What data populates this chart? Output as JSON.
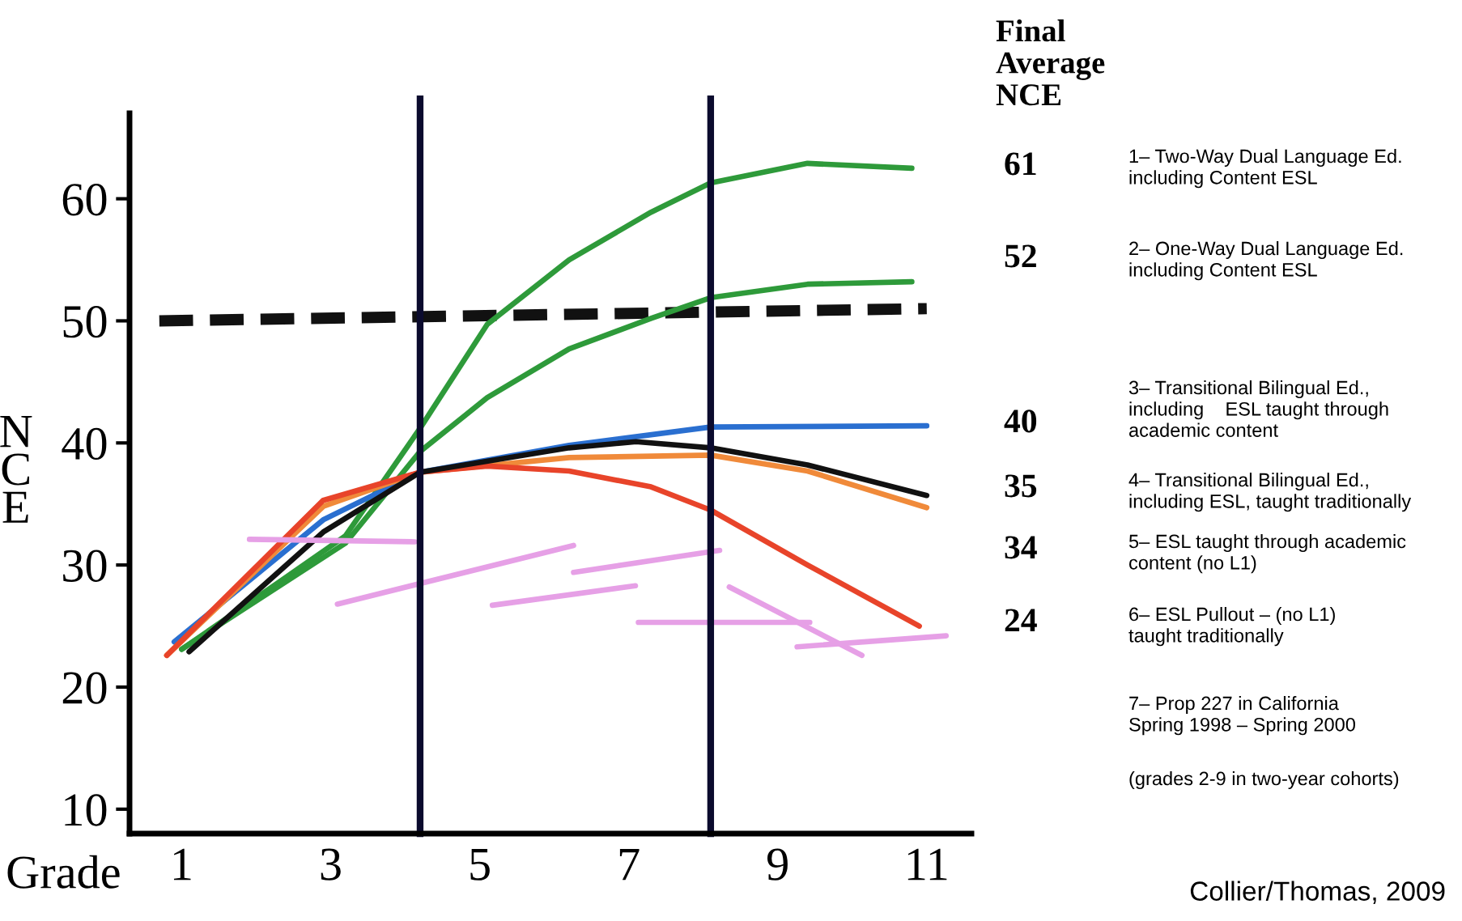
{
  "chart_data": {
    "type": "line",
    "xlabel": "Grade",
    "ylabel": "NCE",
    "xlim": [
      0.3,
      11.6
    ],
    "ylim": [
      8,
      67
    ],
    "xticks": [
      1,
      3,
      5,
      7,
      9,
      11
    ],
    "yticks": [
      10,
      20,
      30,
      40,
      50,
      60
    ],
    "grid": false,
    "legend": false,
    "marker": "none",
    "series": [
      {
        "color": "#111111",
        "line_style": "dashed",
        "x": [
          0.7,
          11
        ],
        "values": [
          50,
          51
        ]
      },
      {
        "color": "#2e9a3a",
        "x": [
          1.0,
          2.26,
          3.2,
          4.2,
          5.1,
          6.2,
          7.3,
          8.1,
          9.4,
          10.8
        ],
        "values": [
          23.1,
          28.4,
          32.4,
          41.2,
          49.7,
          55.0,
          58.9,
          61.3,
          62.9,
          62.5
        ]
      },
      {
        "color": "#2e9a3a",
        "x": [
          1.0,
          3.2,
          4.2,
          5.1,
          6.2,
          7.3,
          8.1,
          9.4,
          10.8
        ],
        "values": [
          23.1,
          31.8,
          39.3,
          43.7,
          47.7,
          50.2,
          51.9,
          53.0,
          53.2
        ]
      },
      {
        "color": "#2a6fd0",
        "x": [
          0.9,
          2.9,
          4.2,
          6.2,
          8.1,
          11.0
        ],
        "values": [
          23.7,
          33.7,
          37.6,
          39.8,
          41.3,
          41.4
        ]
      },
      {
        "color": "#f08a3a",
        "x": [
          0.8,
          2.9,
          4.2,
          6.2,
          8.1,
          9.4,
          11.0
        ],
        "values": [
          22.6,
          34.8,
          37.6,
          38.8,
          39.0,
          37.7,
          34.7
        ]
      },
      {
        "color": "#e8442a",
        "x": [
          0.8,
          2.9,
          4.2,
          5.1,
          6.2,
          7.3,
          8.1,
          9.4,
          10.9
        ],
        "values": [
          22.6,
          35.3,
          37.6,
          38.1,
          37.7,
          36.4,
          34.5,
          30.0,
          25.0
        ]
      },
      {
        "color": "#111111",
        "x": [
          1.1,
          2.9,
          4.2,
          6.2,
          7.1,
          8.1,
          9.4,
          11.0
        ],
        "values": [
          22.9,
          32.7,
          37.6,
          39.6,
          40.1,
          39.6,
          38.2,
          35.7
        ]
      },
      {
        "color": "#e6a0e6",
        "x": [
          1.91,
          4.13
        ],
        "values": [
          32.1,
          31.9
        ]
      },
      {
        "color": "#e6a0e6",
        "x": [
          3.09,
          6.26
        ],
        "values": [
          26.8,
          31.6
        ]
      },
      {
        "color": "#e6a0e6",
        "x": [
          5.17,
          7.09
        ],
        "values": [
          26.7,
          28.3
        ]
      },
      {
        "color": "#e6a0e6",
        "x": [
          6.26,
          8.22
        ],
        "values": [
          29.4,
          31.2
        ]
      },
      {
        "color": "#e6a0e6",
        "x": [
          7.13,
          9.43
        ],
        "values": [
          25.3,
          25.3
        ]
      },
      {
        "color": "#e6a0e6",
        "x": [
          8.35,
          10.13
        ],
        "values": [
          28.2,
          22.6
        ]
      },
      {
        "color": "#e6a0e6",
        "x": [
          9.26,
          11.26
        ],
        "values": [
          23.3,
          24.2
        ]
      }
    ],
    "ref_lines": [
      {
        "axis": "x",
        "value": 4.2,
        "color": "#0b0b2e"
      },
      {
        "axis": "x",
        "value": 8.1,
        "color": "#0b0b2e"
      }
    ],
    "annotations": [
      "Final\nAverage\nNCE",
      "61",
      "52",
      "40",
      "35",
      "34",
      "24",
      "1– Two-Way Dual Language Ed.\nincluding Content ESL",
      "2– One-Way Dual Language Ed.\nincluding Content ESL",
      "3– Transitional Bilingual Ed.,\nincluding    ESL taught through\nacademic content",
      "4– Transitional Bilingual Ed.,\nincluding ESL, taught traditionally",
      "5– ESL taught through academic\ncontent (no L1)",
      "6– ESL Pullout – (no L1)\ntaught traditionally",
      "7– Prop 227 in California\nSpring 1998 – Spring 2000",
      "(grades 2-9 in two-year cohorts)",
      "Collier/Thomas, 2009"
    ]
  }
}
